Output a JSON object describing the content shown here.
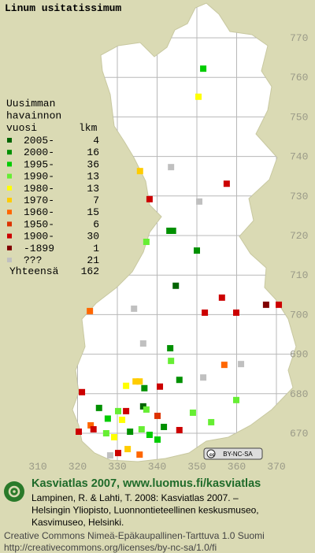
{
  "title": "Linum usitatissimum",
  "legend": {
    "heading": [
      "Uusimman",
      "havainnon",
      "vuosi"
    ],
    "count_heading": "lkm",
    "rows": [
      {
        "label": "2005-",
        "count": 4,
        "color": "#006400"
      },
      {
        "label": "2000-",
        "count": 16,
        "color": "#009000"
      },
      {
        "label": "1995-",
        "count": 36,
        "color": "#00cc00"
      },
      {
        "label": "1990-",
        "count": 13,
        "color": "#66ee33"
      },
      {
        "label": "1980-",
        "count": 13,
        "color": "#ffff00"
      },
      {
        "label": "1970-",
        "count": 7,
        "color": "#ffcc00"
      },
      {
        "label": "1960-",
        "count": 15,
        "color": "#ff6600"
      },
      {
        "label": "1950-",
        "count": 6,
        "color": "#dd3300"
      },
      {
        "label": "1900-",
        "count": 30,
        "color": "#cc0000"
      },
      {
        "label": "-1899",
        "count": 1,
        "color": "#800000"
      },
      {
        "label": "???",
        "count": 21,
        "color": "#c0c0c0"
      }
    ],
    "total_label": "Yhteensä",
    "total": 162
  },
  "grid": {
    "xticks": [
      310,
      320,
      330,
      340,
      350,
      360,
      370
    ],
    "yticks": [
      670,
      680,
      690,
      700,
      710,
      720,
      730,
      740,
      750,
      760,
      770
    ]
  },
  "points": [
    [
      351.6,
      762.2,
      2
    ],
    [
      350.4,
      755.1,
      4
    ],
    [
      335.7,
      736.3,
      5
    ],
    [
      343.5,
      737.3,
      10
    ],
    [
      357.5,
      733.1,
      8
    ],
    [
      338.1,
      729.2,
      8
    ],
    [
      350.6,
      728.6,
      10
    ],
    [
      343.1,
      721.2,
      1
    ],
    [
      344.0,
      721.2,
      1
    ],
    [
      337.3,
      718.4,
      3
    ],
    [
      350,
      716.2,
      1
    ],
    [
      344.7,
      707.3,
      0
    ],
    [
      356.3,
      704.3,
      8
    ],
    [
      367.4,
      702.5,
      9
    ],
    [
      370.6,
      702.5,
      8
    ],
    [
      352,
      700.5,
      8
    ],
    [
      359.9,
      700.5,
      8
    ],
    [
      323.1,
      700.9,
      6
    ],
    [
      334.2,
      701.5,
      10
    ],
    [
      336.5,
      692.7,
      10
    ],
    [
      343.3,
      691.5,
      1
    ],
    [
      343.5,
      688.3,
      3
    ],
    [
      356.9,
      687.3,
      6
    ],
    [
      361.1,
      687.5,
      10
    ],
    [
      332.2,
      682,
      4
    ],
    [
      334.6,
      683.1,
      5
    ],
    [
      335.6,
      683.1,
      5
    ],
    [
      336.8,
      681.4,
      1
    ],
    [
      340.7,
      681.8,
      8
    ],
    [
      345.6,
      683.5,
      1
    ],
    [
      351.6,
      684.1,
      10
    ],
    [
      321.1,
      680.4,
      8
    ],
    [
      325.4,
      676.4,
      1
    ],
    [
      330.2,
      675.6,
      3
    ],
    [
      332.2,
      675.6,
      8
    ],
    [
      336.5,
      676.8,
      0
    ],
    [
      337.3,
      676,
      3
    ],
    [
      340.1,
      674.4,
      7
    ],
    [
      349,
      675.2,
      3
    ],
    [
      353.6,
      672.8,
      3
    ],
    [
      359.9,
      678.4,
      3
    ],
    [
      323.3,
      672,
      6
    ],
    [
      320.3,
      670.4,
      8
    ],
    [
      327.2,
      670,
      3
    ],
    [
      329.2,
      669,
      4
    ],
    [
      333.2,
      670.4,
      1
    ],
    [
      336.1,
      671,
      3
    ],
    [
      338.1,
      669.6,
      2
    ],
    [
      340.1,
      668.4,
      2
    ],
    [
      345.6,
      670.8,
      8
    ],
    [
      328.2,
      664.4,
      10
    ],
    [
      330.2,
      665,
      8
    ],
    [
      332.6,
      666,
      5
    ],
    [
      335.6,
      664.6,
      6
    ],
    [
      327.6,
      673.7,
      2
    ],
    [
      324,
      671,
      8
    ],
    [
      341.7,
      671.6,
      1
    ],
    [
      331.2,
      673.4,
      4
    ]
  ],
  "badge": "BY-NC-SA",
  "footer": {
    "heading": "Kasviatlas 2007, www.luomus.fi/kasviatlas",
    "citation": [
      "Lampinen, R. & Lahti, T. 2008: Kasviatlas 2007. –",
      "Helsingin Yliopisto, Luonnontieteellinen keskusmuseo,",
      "Kasvimuseo, Helsinki."
    ],
    "license": [
      "Creative Commons Nimeä-Epäkaupallinen-Tarttuva 1.0 Suomi",
      "http://creativecommons.org/licenses/by-nc-sa/1.0/fi"
    ]
  }
}
